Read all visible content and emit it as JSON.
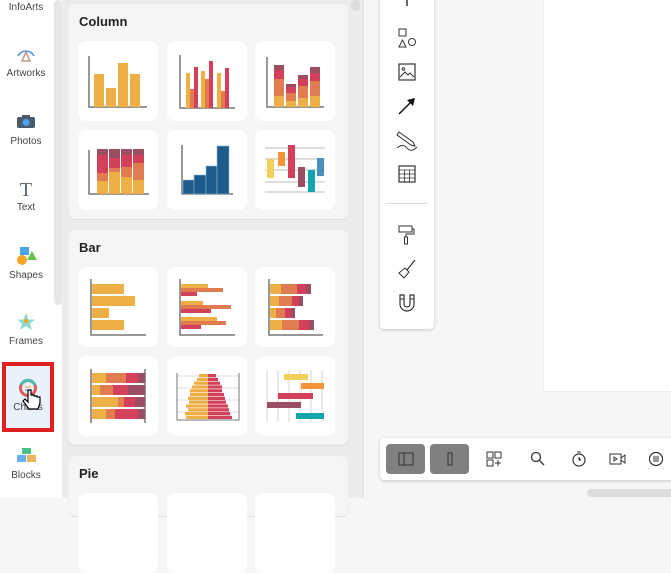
{
  "sidebar": {
    "items": [
      {
        "label": "InfoArts",
        "icon": "infoarts-icon"
      },
      {
        "label": "Artworks",
        "icon": "artworks-icon"
      },
      {
        "label": "Photos",
        "icon": "camera-icon"
      },
      {
        "label": "Text",
        "icon": "text-icon"
      },
      {
        "label": "Shapes",
        "icon": "shapes-icon"
      },
      {
        "label": "Frames",
        "icon": "star-frame-icon"
      },
      {
        "label": "Charts",
        "icon": "chart-ring-icon",
        "selected": true
      },
      {
        "label": "Blocks",
        "icon": "blocks-icon"
      }
    ]
  },
  "panel": {
    "sections": [
      {
        "title": "Column",
        "templates": [
          "column-basic",
          "column-clustered",
          "column-stacked",
          "column-stacked-100",
          "column-histogram",
          "column-floating"
        ]
      },
      {
        "title": "Bar",
        "templates": [
          "bar-basic",
          "bar-clustered",
          "bar-stacked",
          "bar-stacked-100",
          "bar-population-pyramid",
          "bar-gantt"
        ]
      },
      {
        "title": "Pie"
      }
    ]
  },
  "toolbar": {
    "tools": [
      "text-tool",
      "shapes-tool",
      "image-tool",
      "arrow-tool",
      "pen-tool",
      "table-tool",
      "format-painter-tool",
      "brush-tool",
      "magnet-tool"
    ]
  },
  "bottom_bar": {
    "buttons": [
      "panel-left-toggle",
      "panel-right-toggle",
      "add-widget",
      "search",
      "timer",
      "video",
      "comments"
    ]
  },
  "colors": {
    "yellow": "#efaf47",
    "orange": "#e07c4f",
    "red": "#d2405a",
    "plum": "#9b4d62",
    "blue": "#1d5b8c",
    "teal": "#12a5ad",
    "highlight": "#e02020"
  }
}
